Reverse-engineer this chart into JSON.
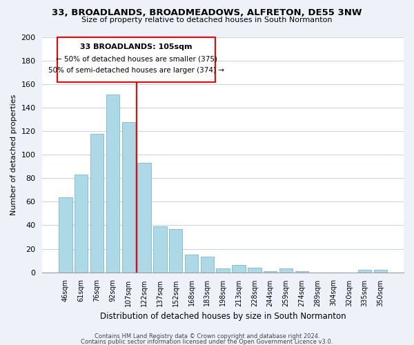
{
  "title": "33, BROADLANDS, BROADMEADOWS, ALFRETON, DE55 3NW",
  "subtitle": "Size of property relative to detached houses in South Normanton",
  "xlabel": "Distribution of detached houses by size in South Normanton",
  "ylabel": "Number of detached properties",
  "bar_labels": [
    "46sqm",
    "61sqm",
    "76sqm",
    "92sqm",
    "107sqm",
    "122sqm",
    "137sqm",
    "152sqm",
    "168sqm",
    "183sqm",
    "198sqm",
    "213sqm",
    "228sqm",
    "244sqm",
    "259sqm",
    "274sqm",
    "289sqm",
    "304sqm",
    "320sqm",
    "335sqm",
    "350sqm"
  ],
  "bar_values": [
    64,
    83,
    118,
    151,
    128,
    93,
    39,
    37,
    15,
    13,
    3,
    6,
    4,
    1,
    3,
    1,
    0,
    0,
    0,
    2,
    2
  ],
  "bar_color": "#add8e6",
  "bar_edge_color": "#7ab8d4",
  "red_line_x": 4.5,
  "ylim": [
    0,
    200
  ],
  "yticks": [
    0,
    20,
    40,
    60,
    80,
    100,
    120,
    140,
    160,
    180,
    200
  ],
  "annotation_title": "33 BROADLANDS: 105sqm",
  "annotation_line1": "← 50% of detached houses are smaller (375)",
  "annotation_line2": "50% of semi-detached houses are larger (374) →",
  "footer_line1": "Contains HM Land Registry data © Crown copyright and database right 2024.",
  "footer_line2": "Contains public sector information licensed under the Open Government Licence v3.0.",
  "bg_color": "#eef2f8",
  "plot_bg_color": "#ffffff",
  "grid_color": "#c5cfe8"
}
